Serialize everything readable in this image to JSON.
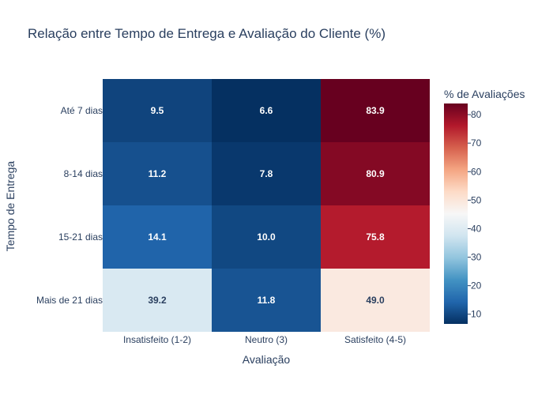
{
  "chart_data": {
    "type": "heatmap",
    "title": "Relação entre Tempo de Entrega e Avaliação do Cliente (%)",
    "xlabel": "Avaliação",
    "ylabel": "Tempo de Entrega",
    "x_categories": [
      "Insatisfeito (1-2)",
      "Neutro (3)",
      "Satisfeito (4-5)"
    ],
    "y_categories": [
      "Até 7 dias",
      "8-14 dias",
      "15-21 dias",
      "Mais de 21 dias"
    ],
    "values": [
      [
        9.5,
        6.6,
        83.9
      ],
      [
        11.2,
        7.8,
        80.9
      ],
      [
        14.1,
        10.0,
        75.8
      ],
      [
        39.2,
        11.8,
        49.0
      ]
    ],
    "value_labels": [
      [
        "9.5",
        "6.6",
        "83.9"
      ],
      [
        "11.2",
        "7.8",
        "80.9"
      ],
      [
        "14.1",
        "10.0",
        "75.8"
      ],
      [
        "39.2",
        "11.8",
        "49.0"
      ]
    ],
    "colorscale": "RdBu reversed",
    "colorbar": {
      "title": "% de Avaliações",
      "range": [
        6.6,
        83.9
      ],
      "ticks": [
        10,
        20,
        30,
        40,
        50,
        60,
        70,
        80
      ]
    }
  }
}
